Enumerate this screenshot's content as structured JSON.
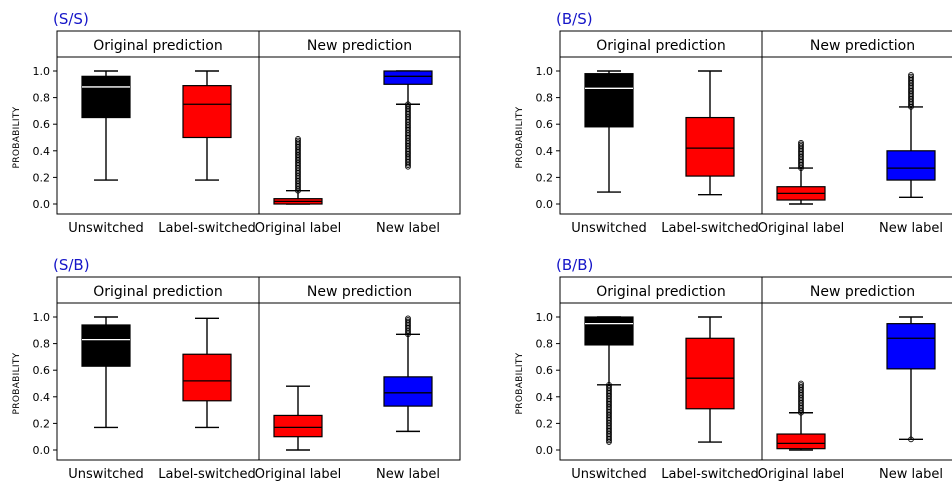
{
  "chart_data": [
    {
      "type": "box",
      "title": "(S/S)",
      "ylabel": "PROBABILITY",
      "ylim": [
        -0.05,
        1.08
      ],
      "yticks": [
        "0.0",
        "0.2",
        "0.4",
        "0.6",
        "0.8",
        "1.0"
      ],
      "groups": [
        {
          "label": "Original prediction",
          "categories": [
            "Unswitched",
            "Label-switched"
          ]
        },
        {
          "label": "New prediction",
          "categories": [
            "Original label",
            "New label"
          ]
        }
      ],
      "boxes": [
        {
          "category": "Unswitched",
          "color": "#000000",
          "whisker_low": 0.18,
          "q1": 0.65,
          "median": 0.88,
          "q3": 0.96,
          "whisker_high": 1.0,
          "outlier_low": null,
          "outlier_high": null
        },
        {
          "category": "Label-switched",
          "color": "#ff0000",
          "whisker_low": 0.18,
          "q1": 0.5,
          "median": 0.75,
          "q3": 0.89,
          "whisker_high": 1.0,
          "outlier_low": null,
          "outlier_high": null
        },
        {
          "category": "Original label",
          "color": "#ff0000",
          "whisker_low": 0.0,
          "q1": 0.0,
          "median": 0.02,
          "q3": 0.04,
          "whisker_high": 0.1,
          "outlier_low": null,
          "outlier_high": [
            0.1,
            0.49
          ]
        },
        {
          "category": "New label",
          "color": "#0000ff",
          "whisker_low": 0.75,
          "q1": 0.9,
          "median": 0.96,
          "q3": 1.0,
          "whisker_high": 1.0,
          "outlier_low": [
            0.28,
            0.75
          ],
          "outlier_high": null
        }
      ]
    },
    {
      "type": "box",
      "title": "(B/S)",
      "ylabel": "PROBABILITY",
      "ylim": [
        -0.05,
        1.08
      ],
      "yticks": [
        "0.0",
        "0.2",
        "0.4",
        "0.6",
        "0.8",
        "1.0"
      ],
      "groups": [
        {
          "label": "Original prediction",
          "categories": [
            "Unswitched",
            "Label-switched"
          ]
        },
        {
          "label": "New prediction",
          "categories": [
            "Original label",
            "New label"
          ]
        }
      ],
      "boxes": [
        {
          "category": "Unswitched",
          "color": "#000000",
          "whisker_low": 0.09,
          "q1": 0.58,
          "median": 0.87,
          "q3": 0.98,
          "whisker_high": 1.0,
          "outlier_low": null,
          "outlier_high": null
        },
        {
          "category": "Label-switched",
          "color": "#ff0000",
          "whisker_low": 0.07,
          "q1": 0.21,
          "median": 0.42,
          "q3": 0.65,
          "whisker_high": 1.0,
          "outlier_low": null,
          "outlier_high": null
        },
        {
          "category": "Original label",
          "color": "#ff0000",
          "whisker_low": 0.0,
          "q1": 0.03,
          "median": 0.08,
          "q3": 0.13,
          "whisker_high": 0.27,
          "outlier_low": null,
          "outlier_high": [
            0.27,
            0.46
          ]
        },
        {
          "category": "New label",
          "color": "#0000ff",
          "whisker_low": 0.05,
          "q1": 0.18,
          "median": 0.27,
          "q3": 0.4,
          "whisker_high": 0.73,
          "outlier_low": null,
          "outlier_high": [
            0.73,
            0.97
          ]
        }
      ]
    },
    {
      "type": "box",
      "title": "(S/B)",
      "ylabel": "PROBABILITY",
      "ylim": [
        -0.05,
        1.08
      ],
      "yticks": [
        "0.0",
        "0.2",
        "0.4",
        "0.6",
        "0.8",
        "1.0"
      ],
      "groups": [
        {
          "label": "Original prediction",
          "categories": [
            "Unswitched",
            "Label-switched"
          ]
        },
        {
          "label": "New prediction",
          "categories": [
            "Original label",
            "New label"
          ]
        }
      ],
      "boxes": [
        {
          "category": "Unswitched",
          "color": "#000000",
          "whisker_low": 0.17,
          "q1": 0.63,
          "median": 0.83,
          "q3": 0.94,
          "whisker_high": 1.0,
          "outlier_low": null,
          "outlier_high": null
        },
        {
          "category": "Label-switched",
          "color": "#ff0000",
          "whisker_low": 0.17,
          "q1": 0.37,
          "median": 0.52,
          "q3": 0.72,
          "whisker_high": 0.99,
          "outlier_low": null,
          "outlier_high": null
        },
        {
          "category": "Original label",
          "color": "#ff0000",
          "whisker_low": 0.0,
          "q1": 0.1,
          "median": 0.17,
          "q3": 0.26,
          "whisker_high": 0.48,
          "outlier_low": null,
          "outlier_high": null
        },
        {
          "category": "New label",
          "color": "#0000ff",
          "whisker_low": 0.14,
          "q1": 0.33,
          "median": 0.43,
          "q3": 0.55,
          "whisker_high": 0.87,
          "outlier_low": null,
          "outlier_high": [
            0.87,
            0.99
          ]
        }
      ]
    },
    {
      "type": "box",
      "title": "(B/B)",
      "ylabel": "PROBABILITY",
      "ylim": [
        -0.05,
        1.08
      ],
      "yticks": [
        "0.0",
        "0.2",
        "0.4",
        "0.6",
        "0.8",
        "1.0"
      ],
      "groups": [
        {
          "label": "Original prediction",
          "categories": [
            "Unswitched",
            "Label-switched"
          ]
        },
        {
          "label": "New prediction",
          "categories": [
            "Original label",
            "New label"
          ]
        }
      ],
      "boxes": [
        {
          "category": "Unswitched",
          "color": "#000000",
          "whisker_low": 0.49,
          "q1": 0.79,
          "median": 0.95,
          "q3": 1.0,
          "whisker_high": 1.0,
          "outlier_low": [
            0.06,
            0.49
          ],
          "outlier_high": null
        },
        {
          "category": "Label-switched",
          "color": "#ff0000",
          "whisker_low": 0.06,
          "q1": 0.31,
          "median": 0.54,
          "q3": 0.84,
          "whisker_high": 1.0,
          "outlier_low": null,
          "outlier_high": null
        },
        {
          "category": "Original label",
          "color": "#ff0000",
          "whisker_low": 0.0,
          "q1": 0.01,
          "median": 0.05,
          "q3": 0.12,
          "whisker_high": 0.28,
          "outlier_low": null,
          "outlier_high": [
            0.28,
            0.5
          ]
        },
        {
          "category": "New label",
          "color": "#0000ff",
          "whisker_low": 0.08,
          "q1": 0.61,
          "median": 0.84,
          "q3": 0.95,
          "whisker_high": 1.0,
          "outlier_low": [
            0.08,
            0.08
          ],
          "outlier_high": null
        }
      ]
    }
  ]
}
